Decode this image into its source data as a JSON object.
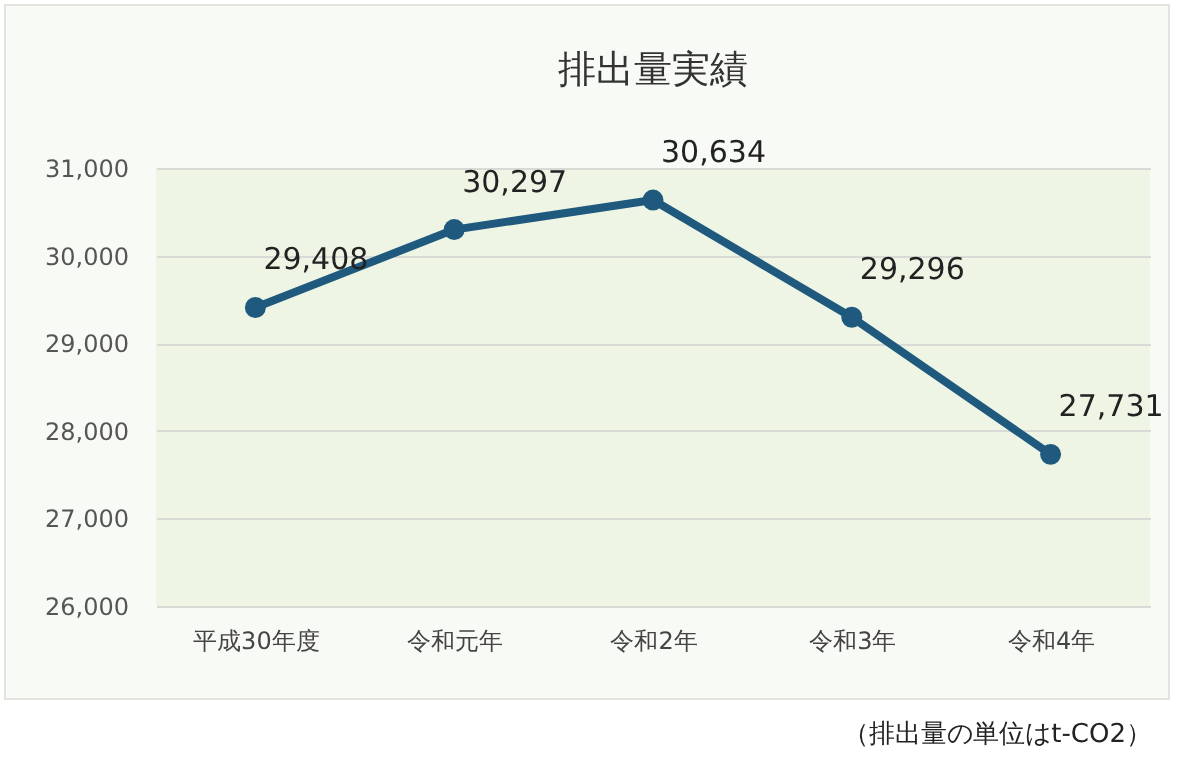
{
  "chart_data": {
    "type": "line",
    "title": "排出量実績",
    "categories": [
      "平成30年度",
      "令和元年",
      "令和2年",
      "令和3年",
      "令和4年"
    ],
    "series": [
      {
        "color": "#1f5a7e",
        "values": [
          29408,
          30297,
          30634,
          29296,
          27731
        ],
        "value_labels": [
          "29,408",
          "30,297",
          "30,634",
          "29,296",
          "27,731"
        ]
      }
    ],
    "ylim": [
      26000,
      31000
    ],
    "yticks": [
      {
        "value": 26000,
        "label": "26,000"
      },
      {
        "value": 27000,
        "label": "27,000"
      },
      {
        "value": 28000,
        "label": "28,000"
      },
      {
        "value": 29000,
        "label": "29,000"
      },
      {
        "value": 30000,
        "label": "30,000"
      },
      {
        "value": 31000,
        "label": "31,000"
      }
    ],
    "grid": "y",
    "marker": "circle",
    "line_style": "solid",
    "legend": false,
    "annotations": [
      "（排出量の単位はt-CO2）"
    ]
  }
}
